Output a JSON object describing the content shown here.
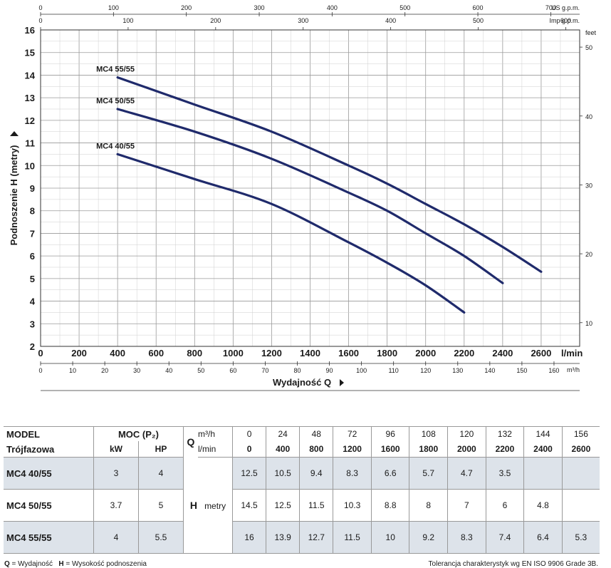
{
  "chart_data": {
    "type": "line",
    "title": "",
    "xlabel": "Wydajność Q",
    "ylabel": "Podnoszenie H  (metry)",
    "x_unit": "l/min",
    "xlim": [
      0,
      2800
    ],
    "ylim": [
      2,
      16
    ],
    "x_ticks": [
      0,
      200,
      400,
      600,
      800,
      1000,
      1200,
      1400,
      1600,
      1800,
      2000,
      2200,
      2400,
      2600
    ],
    "y_ticks": [
      2,
      3,
      4,
      5,
      6,
      7,
      8,
      9,
      10,
      11,
      12,
      13,
      14,
      15,
      16
    ],
    "grid": true,
    "top_axis_us": {
      "unit": "US g.p.m.",
      "ticks": [
        0,
        100,
        200,
        300,
        400,
        500,
        600,
        700
      ]
    },
    "top_axis_imp": {
      "unit": "Imp g.p.m.",
      "ticks": [
        0,
        100,
        200,
        300,
        400,
        500,
        600
      ]
    },
    "right_axis": {
      "unit": "feet",
      "ticks": [
        10,
        20,
        30,
        40,
        50
      ]
    },
    "bottom_axis_m3h": {
      "unit": "m³/h",
      "ticks": [
        0,
        10,
        20,
        30,
        40,
        50,
        60,
        70,
        80,
        90,
        100,
        110,
        120,
        130,
        140,
        150,
        160
      ]
    },
    "series": [
      {
        "name": "MC4 40/55",
        "x": [
          400,
          800,
          1200,
          1600,
          1800,
          2000,
          2200
        ],
        "y": [
          10.5,
          9.4,
          8.3,
          6.6,
          5.7,
          4.7,
          3.5
        ]
      },
      {
        "name": "MC4 50/55",
        "x": [
          400,
          800,
          1200,
          1600,
          1800,
          2000,
          2200,
          2400
        ],
        "y": [
          12.5,
          11.5,
          10.3,
          8.8,
          8,
          7,
          6,
          4.8
        ]
      },
      {
        "name": "MC4 55/55",
        "x": [
          400,
          800,
          1200,
          1600,
          1800,
          2000,
          2200,
          2400,
          2600
        ],
        "y": [
          13.9,
          12.7,
          11.5,
          10,
          9.2,
          8.3,
          7.4,
          6.4,
          5.3
        ]
      }
    ],
    "line_color": "#1f2a6b"
  },
  "table": {
    "h_model": "MODEL",
    "h_moc": "MOC (P₂)",
    "h_q": "Q",
    "h_m3h": "m³/h",
    "h_trojfazowa": "Trójfazowa",
    "h_kw": "kW",
    "h_hp": "HP",
    "h_lmin": "l/min",
    "q_m3h": [
      "0",
      "24",
      "48",
      "72",
      "96",
      "108",
      "120",
      "132",
      "144",
      "156"
    ],
    "q_lmin": [
      "0",
      "400",
      "800",
      "1200",
      "1600",
      "1800",
      "2000",
      "2200",
      "2400",
      "2600"
    ],
    "h_label": "H",
    "metry_label": "metry",
    "rows": [
      {
        "model": "MC4 40/55",
        "kw": "3",
        "hp": "4",
        "h": [
          "12.5",
          "10.5",
          "9.4",
          "8.3",
          "6.6",
          "5.7",
          "4.7",
          "3.5",
          "",
          ""
        ]
      },
      {
        "model": "MC4 50/55",
        "kw": "3.7",
        "hp": "5",
        "h": [
          "14.5",
          "12.5",
          "11.5",
          "10.3",
          "8.8",
          "8",
          "7",
          "6",
          "4.8",
          ""
        ]
      },
      {
        "model": "MC4 55/55",
        "kw": "4",
        "hp": "5.5",
        "h": [
          "16",
          "13.9",
          "12.7",
          "11.5",
          "10",
          "9.2",
          "8.3",
          "7.4",
          "6.4",
          "5.3"
        ]
      }
    ],
    "shade_color": "#dde3ea"
  },
  "footer": {
    "q_key": "Q",
    "q_desc": " = Wydajność",
    "h_key": "H",
    "h_desc": " = Wysokość podnoszenia",
    "tolerance": "Tolerancja charakterystyk wg EN ISO 9906 Grade 3B."
  }
}
